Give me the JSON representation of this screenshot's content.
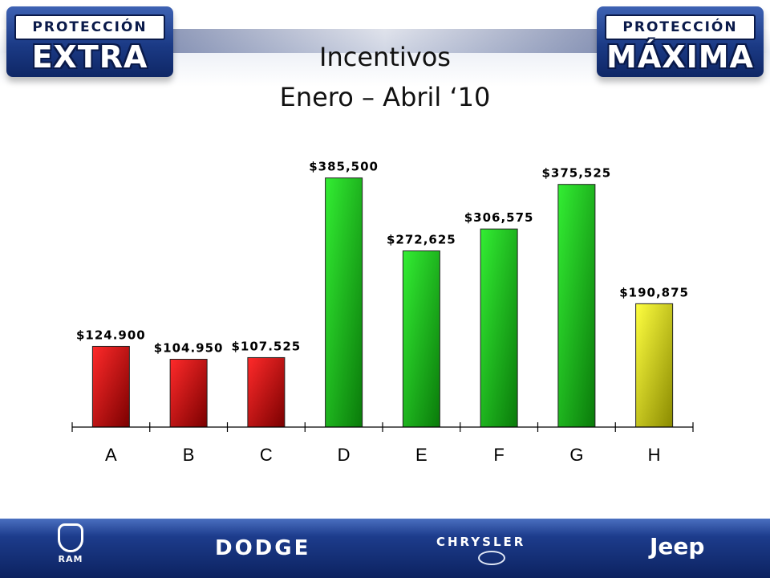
{
  "header": {
    "title_line1": "Incentivos",
    "title_line2": "Enero – Abril ‘10",
    "badge_left": {
      "top": "PROTECCIÓN",
      "big": "EXTRA"
    },
    "badge_right": {
      "top": "PROTECCIÓN",
      "big": "MÁXIMA"
    }
  },
  "footer": {
    "brands": {
      "ram": "RAM",
      "dodge": "DODGE",
      "chrysler": "CHRYSLER",
      "jeep": "Jeep"
    }
  },
  "colors": {
    "red": "#e01010",
    "green": "#22c81e",
    "yellow": "#f2f21e",
    "title_text": "#111111",
    "header_blue": "#1b3a85"
  },
  "chart_data": {
    "type": "bar",
    "categories": [
      "A",
      "B",
      "C",
      "D",
      "E",
      "F",
      "G",
      "H"
    ],
    "values": [
      124900,
      104950,
      107525,
      385500,
      272625,
      306575,
      375525,
      190875
    ],
    "data_labels": [
      "$124.900",
      "$104.950",
      "$107.525",
      "$385,500",
      "$272,625",
      "$306,575",
      "$375,525",
      "$190,875"
    ],
    "bar_colors": [
      "red",
      "red",
      "red",
      "green",
      "green",
      "green",
      "green",
      "yellow"
    ],
    "title": "",
    "xlabel": "",
    "ylabel": "",
    "ylim": [
      0,
      400000
    ],
    "grid": false,
    "legend": "none"
  }
}
